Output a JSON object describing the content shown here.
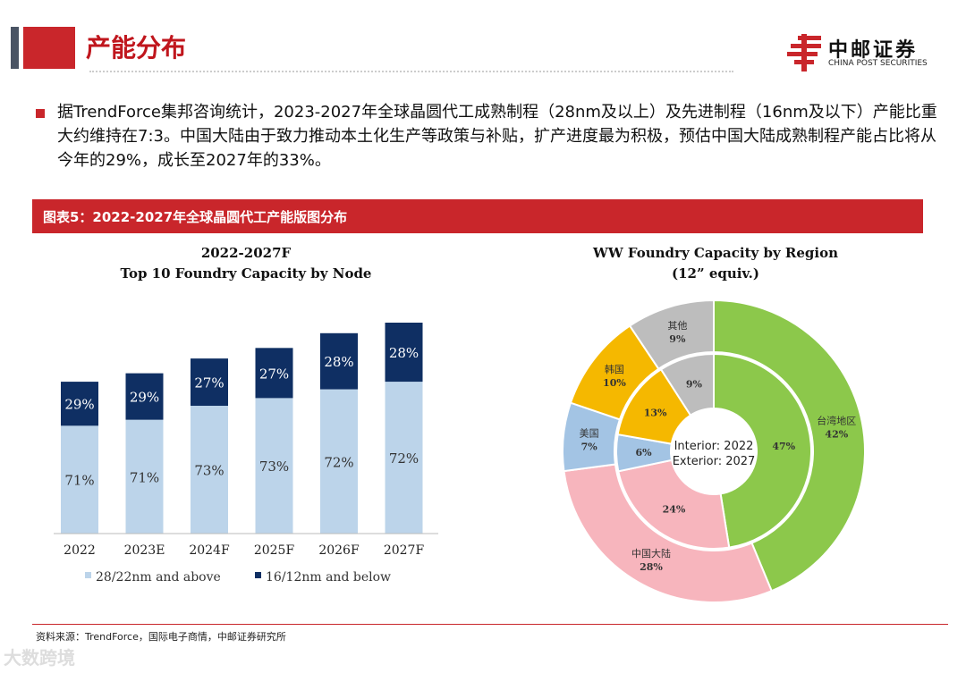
{
  "header": {
    "title": "产能分布",
    "logo_cn": "中邮证券",
    "logo_en": "CHINA POST SECURITIES"
  },
  "paragraph": "据TrendForce集邦咨询统计，2023-2027年全球晶圆代工成熟制程（28nm及以上）及先进制程（16nm及以下）产能比重大约维持在7:3。中国大陆由于致力推动本土化生产等政策与补贴，扩产进度最为积极，预估中国大陆成熟制程产能占比将从今年的29%，成长至2027年的33%。",
  "figure_title": "图表5：2022-2027年全球晶圆代工产能版图分布",
  "source": "资料来源：TrendForce，国际电子商情，中邮证券研究所",
  "watermark": "大数跨境",
  "chart_data": [
    {
      "type": "bar",
      "stacked": true,
      "title": "2022-2027F",
      "subtitle": "Top 10 Foundry Capacity by Node",
      "categories": [
        "2022",
        "2023E",
        "2024F",
        "2025F",
        "2026F",
        "2027F"
      ],
      "total_index": [
        72,
        76,
        83,
        88,
        95,
        100
      ],
      "series": [
        {
          "name": "28/22nm and above",
          "color": "#bcd4ea",
          "values": [
            71,
            71,
            73,
            73,
            72,
            72
          ],
          "labels": [
            "71%",
            "71%",
            "73%",
            "73%",
            "72%",
            "72%"
          ]
        },
        {
          "name": "16/12nm and below",
          "color": "#0f2f63",
          "values": [
            29,
            29,
            27,
            27,
            28,
            28
          ],
          "labels": [
            "29%",
            "29%",
            "27%",
            "27%",
            "28%",
            "28%"
          ]
        }
      ],
      "legend": "bottom",
      "watermark": "TRENDFORCE"
    },
    {
      "type": "pie",
      "donut": true,
      "title": "WW Foundry Capacity by Region",
      "subtitle": "(12” equiv.)",
      "center_label": [
        "Interior: 2022",
        "Exterior: 2027"
      ],
      "categories": [
        "台湾地区",
        "中国大陆",
        "美国",
        "韩国",
        "其他"
      ],
      "colors": [
        "#8cc84b",
        "#f7b5bd",
        "#a3c4e4",
        "#f5b800",
        "#bdbdbd"
      ],
      "inner_2022": [
        47,
        24,
        6,
        13,
        9
      ],
      "outer_2027": [
        42,
        28,
        7,
        10,
        9
      ],
      "inner_labels": [
        "47%",
        "24%",
        "6%",
        "13%",
        "9%"
      ],
      "outer_labels": [
        "42%",
        "28%",
        "7%",
        "10%",
        "9%"
      ]
    }
  ]
}
